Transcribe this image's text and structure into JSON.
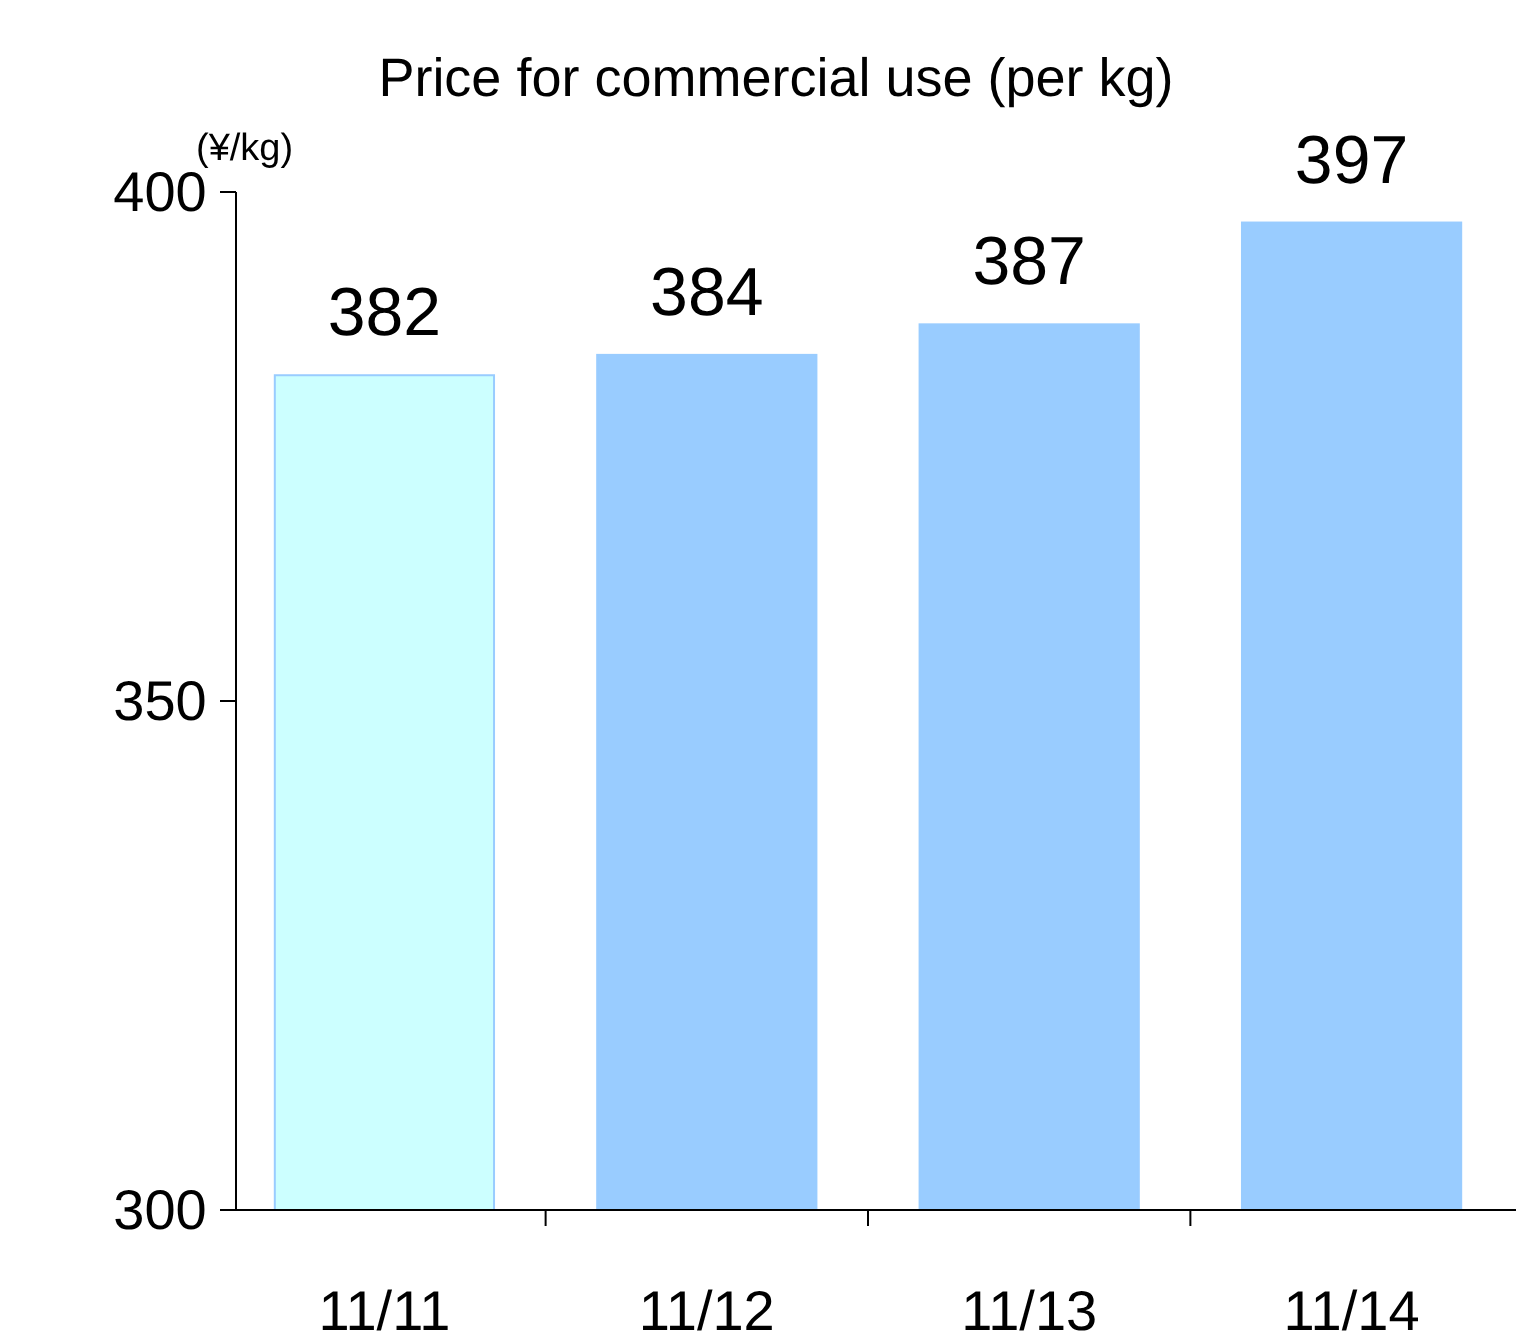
{
  "chart_data": {
    "type": "bar",
    "title": "Price for commercial use (per kg)",
    "ylabel": "(¥/kg)",
    "categories": [
      "11/11",
      "11/12",
      "11/13",
      "11/14"
    ],
    "values": [
      382,
      384,
      387,
      397
    ],
    "colors": [
      "#ccffff",
      "#99ccff",
      "#99ccff",
      "#99ccff"
    ],
    "ylim": [
      300,
      400
    ],
    "yticks": [
      300,
      350,
      400
    ],
    "data_labels": true
  }
}
